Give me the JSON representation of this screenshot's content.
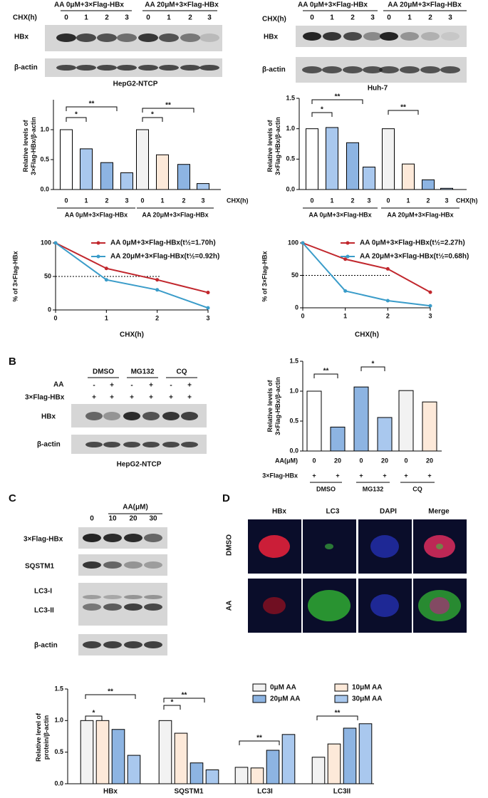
{
  "panel_labels": [
    "B",
    "C",
    "D"
  ],
  "blots": [
    {
      "header": [
        "AA 0μM+3×Flag-HBx",
        "AA 20μM+3×Flag-HBx"
      ],
      "lane_label": "CHX(h)",
      "lanes": [
        "0",
        "1",
        "2",
        "3",
        "0",
        "1",
        "2",
        "3"
      ],
      "rows": [
        "HBx",
        "β-actin"
      ],
      "caption": "HepG2-NTCP"
    },
    {
      "header": [
        "AA 0μM+3×Flag-HBx",
        "AA 20μM+3×Flag-HBx"
      ],
      "lane_label": "CHX(h)",
      "lanes": [
        "0",
        "1",
        "2",
        "3",
        "0",
        "1",
        "2",
        "3"
      ],
      "rows": [
        "HBx",
        "β-actin"
      ],
      "caption": "Huh-7"
    },
    {
      "groups": [
        "DMSO",
        "MG132",
        "CQ"
      ],
      "treatments": [
        {
          "label": "AA",
          "values": [
            "-",
            "+",
            "-",
            "+",
            "-",
            "+"
          ]
        },
        {
          "label": "3×Flag-HBx",
          "values": [
            "+",
            "+",
            "+",
            "+",
            "+",
            "+"
          ]
        }
      ],
      "rows": [
        "HBx",
        "β-actin"
      ],
      "caption": "HepG2-NTCP"
    },
    {
      "header": [
        "AA(μM)"
      ],
      "lanes": [
        "0",
        "10",
        "20",
        "30"
      ],
      "rows": [
        "3×Flag-HBx",
        "SQSTM1",
        "LC3-I",
        "LC3-II",
        "β-actin"
      ]
    }
  ],
  "micrographs": {
    "columns": [
      "HBx",
      "LC3",
      "DAPI",
      "Merge"
    ],
    "rows": [
      "DMSO",
      "AA"
    ]
  },
  "chart_data": [
    {
      "type": "bar",
      "y_label": [
        "Relative levels of",
        "3×Flag-HBx/β-actin"
      ],
      "x_label": "CHX(h)",
      "categories": [
        "0",
        "1",
        "2",
        "3",
        "0",
        "1",
        "2",
        "3"
      ],
      "values": [
        1.0,
        0.68,
        0.45,
        0.28,
        1.0,
        0.58,
        0.42,
        0.1
      ],
      "colors": [
        "#ffffff",
        "#a9c8ee",
        "#8db4e2",
        "#a9c8ee",
        "#f2f2f2",
        "#fde9d9",
        "#8db4e2",
        "#a9c8ee"
      ],
      "groups": [
        "AA 0μM+3×Flag-HBx",
        "AA 20μM+3×Flag-HBx"
      ],
      "annotations": [
        "*",
        "**",
        "*",
        "**"
      ],
      "ylim": [
        0,
        1.5
      ],
      "yticks": [
        {
          "value": 0,
          "label": "0.0"
        },
        0.5,
        {
          "value": 1,
          "label": "1.0"
        }
      ]
    },
    {
      "type": "bar",
      "y_label": [
        "Relative levels of",
        "3×Flag-HBx/β-actin"
      ],
      "x_label": "CHX(h)",
      "categories": [
        "0",
        "1",
        "2",
        "3",
        "0",
        "1",
        "2",
        "3"
      ],
      "values": [
        1.0,
        1.02,
        0.77,
        0.37,
        1.0,
        0.42,
        0.16,
        0.02
      ],
      "colors": [
        "#ffffff",
        "#a9c8ee",
        "#8db4e2",
        "#a9c8ee",
        "#f2f2f2",
        "#fde9d9",
        "#8db4e2",
        "#a9c8ee"
      ],
      "groups": [
        "AA 0μM+3×Flag-HBx",
        "AA 20μM+3×Flag-HBx"
      ],
      "annotations": [
        "*",
        "**",
        "**"
      ],
      "ylim": [
        0,
        1.5
      ],
      "yticks": [
        {
          "value": 0,
          "label": "0.0"
        },
        0.5,
        {
          "value": 1,
          "label": "1.0"
        },
        1.5
      ]
    },
    {
      "type": "line",
      "y_label": [
        "% of 3×Flag-HBx"
      ],
      "x_label": "CHX(h)",
      "x": [
        0,
        1,
        2,
        3
      ],
      "series": [
        {
          "name": "AA 0μM+3×Flag-HBx(t½=1.70h)",
          "color": "#c1272d",
          "values": [
            100,
            62,
            45,
            26
          ]
        },
        {
          "name": "AA 20μM+3×Flag-HBx(t½=0.92h)",
          "color": "#3a9cc9",
          "values": [
            100,
            45,
            30,
            3
          ]
        }
      ],
      "reference_line": 50,
      "xlim": [
        0,
        3
      ],
      "xticks": [
        0,
        1,
        2,
        3
      ],
      "ylim": [
        0,
        100
      ],
      "yticks": [
        0,
        50,
        100
      ]
    },
    {
      "type": "line",
      "y_label": [
        "% of 3×Flag-HBx"
      ],
      "x_label": "CHX(h)",
      "x": [
        0,
        1,
        2,
        3
      ],
      "series": [
        {
          "name": "AA 0μM+3×Flag-HBx(t½=2.27h)",
          "color": "#c1272d",
          "values": [
            100,
            75,
            60,
            24
          ]
        },
        {
          "name": "AA 20μM+3×Flag-HBx(t½=0.68h)",
          "color": "#3a9cc9",
          "values": [
            100,
            26,
            11,
            3
          ]
        }
      ],
      "reference_line": 50,
      "xlim": [
        0,
        3
      ],
      "xticks": [
        0,
        1,
        2,
        3
      ],
      "ylim": [
        0,
        100
      ],
      "yticks": [
        0,
        50,
        100
      ]
    },
    {
      "type": "bar",
      "y_label": [
        "Relative levels of",
        "3×Flag-HBx/β-actin"
      ],
      "x_label": "AA(μM)",
      "categories": [
        "0",
        "20",
        "0",
        "20",
        "0",
        "20"
      ],
      "values": [
        1.0,
        0.4,
        1.07,
        0.56,
        1.01,
        0.82
      ],
      "colors": [
        "#ffffff",
        "#8db4e2",
        "#8db4e2",
        "#a9c8ee",
        "#f2f2f2",
        "#fde9d9"
      ],
      "row_label": "3×Flag-HBx",
      "row_values": [
        "+",
        "+",
        "+",
        "+",
        "+",
        "+"
      ],
      "groups": [
        "DMSO",
        "MG132",
        "CQ"
      ],
      "annotations": [
        "**",
        "*"
      ],
      "ylim": [
        0,
        1.5
      ],
      "yticks": [
        {
          "value": 0,
          "label": "0.0"
        },
        0.5,
        {
          "value": 1,
          "label": "1.0"
        },
        1.5
      ]
    },
    {
      "type": "bar",
      "y_label": [
        "Relative level of",
        "protein/β-actin"
      ],
      "categories": [
        "HBx",
        "SQSTM1",
        "LC3I",
        "LC3II"
      ],
      "series": [
        {
          "name": "0μM AA",
          "color": "#f2f2f2",
          "values": [
            1.0,
            1.0,
            0.26,
            0.42
          ]
        },
        {
          "name": "10μM AA",
          "color": "#fde9d9",
          "values": [
            1.0,
            0.8,
            0.25,
            0.63
          ]
        },
        {
          "name": "20μM AA",
          "color": "#8db4e2",
          "values": [
            0.86,
            0.33,
            0.53,
            0.88
          ]
        },
        {
          "name": "30μM AA",
          "color": "#a9c8ee",
          "values": [
            0.45,
            0.22,
            0.78,
            0.95
          ]
        }
      ],
      "annotations": [
        "*",
        "**",
        "*",
        "**",
        "**",
        "**"
      ],
      "ylim": [
        0,
        1.5
      ],
      "yticks": [
        {
          "value": 0,
          "label": "0.0"
        },
        0.5,
        {
          "value": 1,
          "label": "1.0"
        },
        1.5
      ]
    }
  ]
}
